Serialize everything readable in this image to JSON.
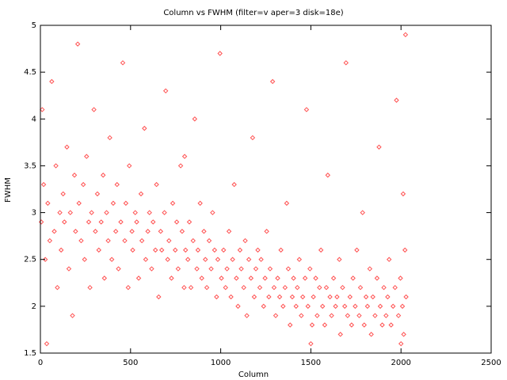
{
  "chart_data": {
    "type": "scatter",
    "title": "Column vs FWHM (filter=v aper=3 disk=18e)",
    "x_label": "Column",
    "y_label": "FWHM",
    "color": "#ff5050",
    "xlim": [
      0,
      2500
    ],
    "xticks": [
      0,
      500,
      1000,
      1500,
      2000,
      2500
    ],
    "ylim": [
      1.5,
      5
    ],
    "yticks": [
      1.5,
      2,
      2.5,
      3,
      3.5,
      4,
      4.5,
      5
    ],
    "grid": false,
    "x": [
      5,
      18,
      27,
      41,
      52,
      63,
      77,
      86,
      94,
      108,
      115,
      126,
      133,
      147,
      158,
      166,
      178,
      189,
      195,
      207,
      214,
      226,
      238,
      245,
      256,
      268,
      275,
      284,
      297,
      305,
      316,
      324,
      337,
      348,
      355,
      367,
      376,
      385,
      396,
      404,
      418,
      425,
      433,
      446,
      457,
      468,
      474,
      487,
      493,
      508,
      512,
      526,
      534,
      545,
      558,
      563,
      577,
      584,
      596,
      605,
      617,
      625,
      638,
      644,
      656,
      667,
      673,
      688,
      695,
      706,
      713,
      727,
      734,
      748,
      756,
      764,
      778,
      786,
      797,
      805,
      818,
      826,
      835,
      847,
      856,
      868,
      874,
      886,
      895,
      907,
      915,
      923,
      936,
      947,
      955,
      966,
      977,
      984,
      996,
      1004,
      1016,
      1027,
      1035,
      1046,
      1057,
      1066,
      1075,
      1087,
      1096,
      1107,
      1114,
      1128,
      1136,
      1145,
      1156,
      1168,
      1177,
      1186,
      1195,
      1206,
      1217,
      1224,
      1238,
      1246,
      1255,
      1267,
      1274,
      1288,
      1296,
      1305,
      1316,
      1327,
      1334,
      1346,
      1357,
      1366,
      1375,
      1385,
      1397,
      1404,
      1418,
      1425,
      1436,
      1447,
      1455,
      1468,
      1476,
      1484,
      1495,
      1507,
      1514,
      1527,
      1535,
      1548,
      1556,
      1565,
      1577,
      1586,
      1594,
      1606,
      1615,
      1626,
      1637,
      1645,
      1658,
      1664,
      1676,
      1688,
      1695,
      1704,
      1717,
      1726,
      1734,
      1746,
      1755,
      1768,
      1775,
      1787,
      1796,
      1806,
      1814,
      1827,
      1835,
      1844,
      1856,
      1867,
      1878,
      1885,
      1896,
      1905,
      1917,
      1926,
      1934,
      1945,
      1956,
      1967,
      1975,
      1986,
      1997,
      2008,
      2015,
      2022,
      2028,
      2012,
      2025,
      10,
      35,
      1500,
      2000,
      800
    ],
    "values": [
      2.9,
      3.3,
      2.5,
      3.1,
      2.7,
      4.4,
      2.8,
      3.5,
      2.2,
      3.0,
      2.6,
      3.2,
      2.9,
      3.7,
      2.4,
      3.0,
      1.9,
      3.4,
      2.8,
      4.8,
      3.1,
      2.7,
      3.3,
      2.5,
      3.6,
      2.9,
      2.2,
      3.0,
      4.1,
      2.8,
      3.2,
      2.6,
      2.9,
      3.4,
      2.3,
      3.0,
      2.7,
      3.8,
      2.5,
      3.1,
      2.8,
      3.3,
      2.4,
      2.9,
      4.6,
      2.7,
      3.1,
      2.2,
      3.5,
      2.8,
      2.6,
      3.0,
      2.9,
      2.3,
      3.2,
      2.7,
      3.9,
      2.5,
      2.8,
      3.0,
      2.4,
      2.9,
      2.6,
      3.3,
      2.1,
      2.8,
      2.6,
      3.0,
      4.3,
      2.5,
      2.7,
      2.3,
      3.1,
      2.6,
      2.9,
      2.4,
      3.5,
      2.8,
      2.2,
      2.6,
      2.5,
      2.9,
      2.2,
      2.7,
      4.0,
      2.4,
      2.6,
      3.1,
      2.3,
      2.8,
      2.5,
      2.2,
      2.7,
      2.4,
      3.0,
      2.6,
      2.1,
      2.5,
      4.7,
      2.3,
      2.6,
      2.2,
      2.4,
      2.8,
      2.1,
      2.5,
      3.3,
      2.3,
      2.0,
      2.6,
      2.4,
      2.2,
      2.7,
      1.9,
      2.5,
      2.3,
      3.8,
      2.1,
      2.4,
      2.6,
      2.2,
      2.5,
      2.0,
      2.3,
      2.8,
      2.1,
      2.4,
      4.4,
      2.2,
      1.9,
      2.3,
      2.1,
      2.6,
      2.0,
      2.2,
      3.1,
      2.4,
      1.8,
      2.1,
      2.3,
      2.0,
      2.2,
      2.5,
      1.9,
      2.1,
      2.3,
      4.1,
      2.0,
      2.4,
      1.8,
      2.1,
      2.3,
      1.9,
      2.2,
      2.6,
      2.0,
      1.8,
      2.2,
      3.4,
      2.1,
      1.9,
      2.3,
      2.0,
      2.1,
      2.5,
      1.7,
      2.2,
      2.0,
      4.6,
      1.9,
      2.1,
      1.8,
      2.3,
      2.0,
      2.6,
      1.9,
      2.2,
      3.0,
      1.8,
      2.1,
      2.0,
      2.4,
      1.7,
      2.1,
      1.9,
      2.3,
      3.7,
      2.0,
      1.8,
      2.2,
      1.9,
      2.1,
      2.5,
      1.8,
      2.0,
      2.2,
      4.2,
      1.9,
      2.3,
      2.0,
      1.7,
      2.6,
      2.1,
      3.2,
      4.9,
      4.1,
      1.6,
      1.6,
      1.6,
      3.6
    ]
  }
}
